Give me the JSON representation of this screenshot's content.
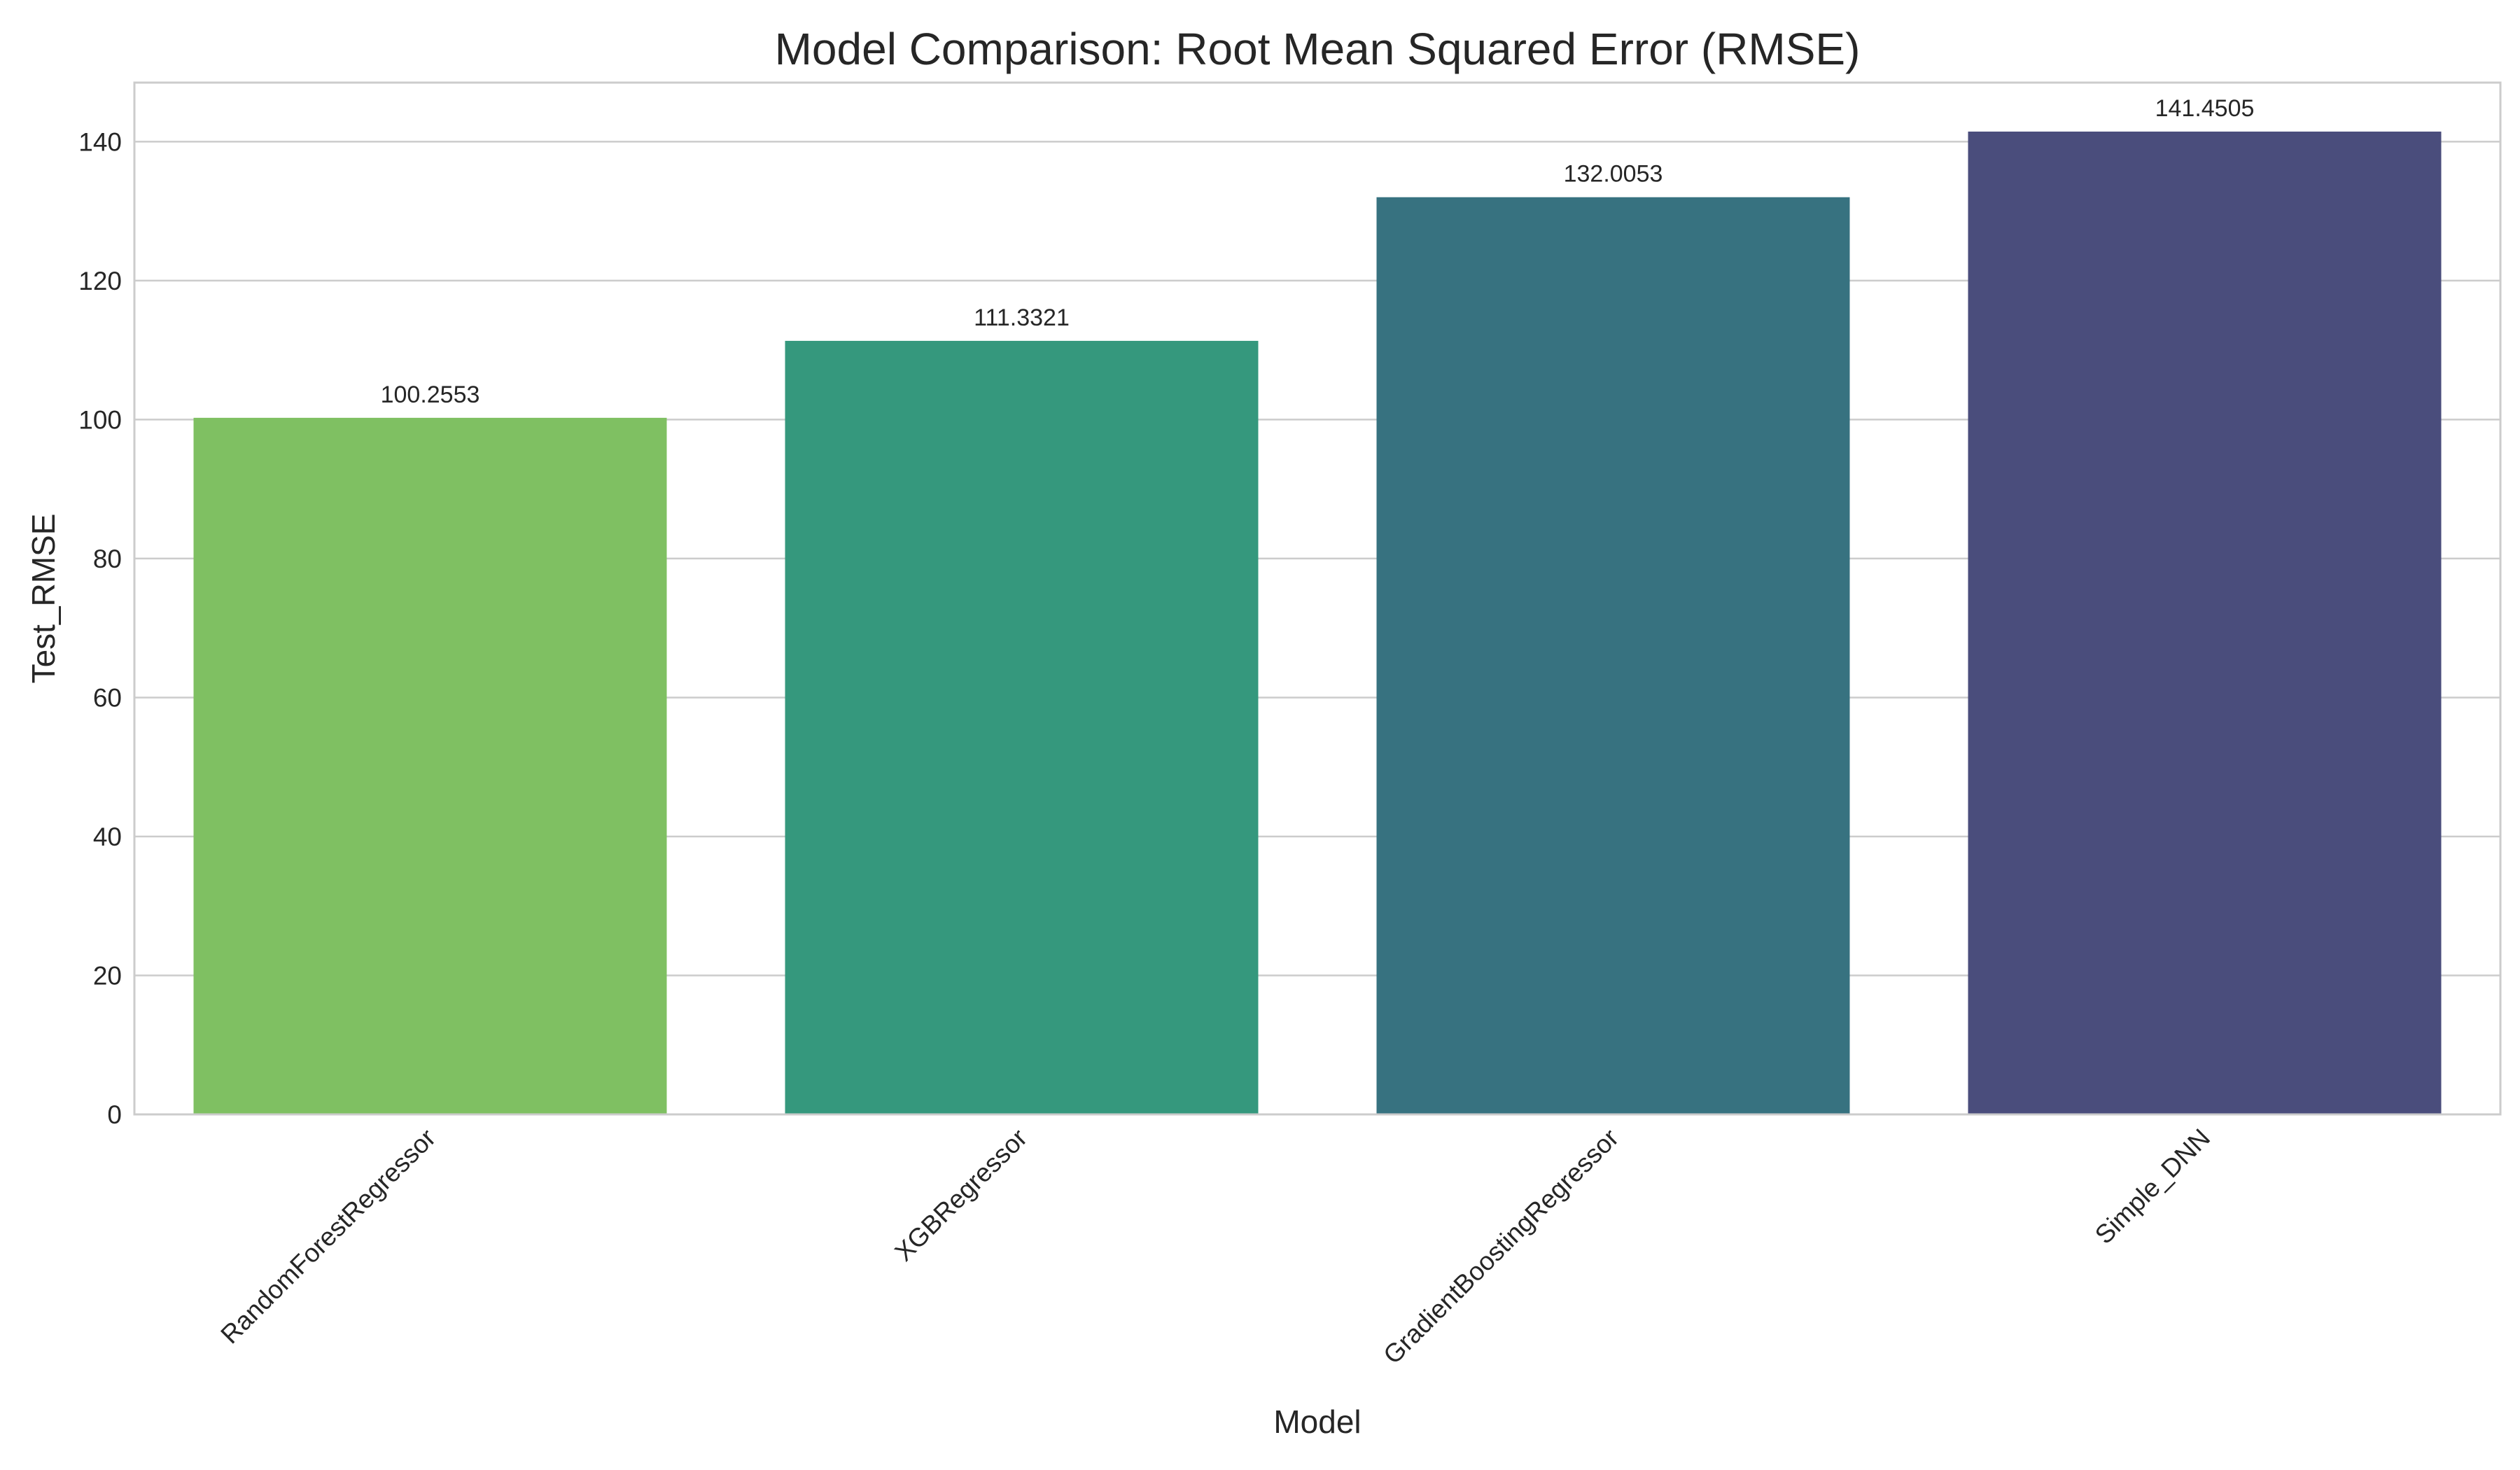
{
  "chart_data": {
    "type": "bar",
    "title": "Model Comparison: Root Mean Squared Error (RMSE)",
    "xlabel": "Model",
    "ylabel": "Test_RMSE",
    "categories": [
      "RandomForestRegressor",
      "XGBRegressor",
      "GradientBoostingRegressor",
      "Simple_DNN"
    ],
    "values": [
      100.2553,
      111.3321,
      132.0053,
      141.4505
    ],
    "data_labels": [
      "100.2553",
      "111.3321",
      "132.0053",
      "141.4505"
    ],
    "colors": [
      "#7fc062",
      "#35987d",
      "#377280",
      "#4a4d7c"
    ],
    "ylim": [
      0,
      148.5
    ],
    "yticks": [
      0,
      20,
      40,
      60,
      80,
      100,
      120,
      140
    ],
    "ytick_labels": [
      "0",
      "20",
      "40",
      "60",
      "80",
      "100",
      "120",
      "140"
    ],
    "grid": true,
    "grid_color": "#cccccc",
    "spine_color": "#cccccc",
    "background": "#ffffff",
    "text_color": "#262626"
  }
}
